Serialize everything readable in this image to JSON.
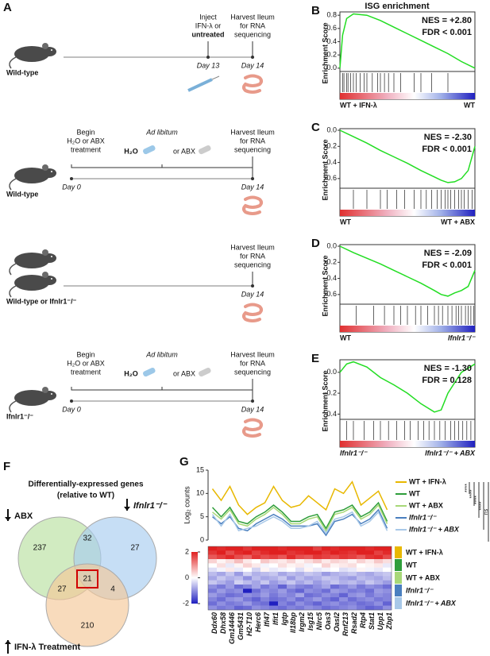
{
  "panel_a": {
    "label": "A",
    "rows": [
      {
        "mouse": "Wild-type",
        "events": [
          {
            "lines": [
              "Inject",
              "IFN-λ or",
              "untreated"
            ],
            "day": "Day 13"
          },
          {
            "lines": [
              "Harvest Ileum",
              "for RNA",
              "sequencing"
            ],
            "day": "Day 14"
          }
        ]
      },
      {
        "mouse": "Wild-type",
        "begin": {
          "lines": [
            "Begin",
            "H₂O or ABX",
            "treatment"
          ],
          "day": "Day 0"
        },
        "middle": {
          "title": "Ad libitum",
          "left": "H₂O",
          "right": "or ABX"
        },
        "events": [
          {
            "lines": [
              "Harvest Ileum",
              "for RNA",
              "sequencing"
            ],
            "day": "Day 14"
          }
        ]
      },
      {
        "mouse": "Wild-type or Ifnlr1⁻/⁻",
        "events": [
          {
            "lines": [
              "Harvest Ileum",
              "for RNA",
              "sequencing"
            ],
            "day": "Day 14"
          }
        ]
      },
      {
        "mouse": "Ifnlr1⁻/⁻",
        "begin": {
          "lines": [
            "Begin",
            "H₂O or ABX",
            "treatment"
          ],
          "day": "Day 0"
        },
        "middle": {
          "title": "Ad libitum",
          "left": "H₂O",
          "right": "or ABX"
        },
        "events": [
          {
            "lines": [
              "Harvest Ileum",
              "for RNA",
              "sequencing"
            ],
            "day": "Day 14"
          }
        ]
      }
    ]
  },
  "gsea": {
    "title": "ISG enrichment",
    "ylabel": "Enrichment Score",
    "panels": [
      {
        "label": "B",
        "nes": "NES = +2.80",
        "fdr": "FDR < 0.001",
        "fdr_color": "#d00000",
        "left": "WT + IFN-λ",
        "right": "WT",
        "ylim": [
          -0.05,
          0.85
        ],
        "yticks": [
          {
            "value": 0,
            "label": "0.0"
          },
          0.2,
          0.4,
          0.6,
          0.8
        ],
        "x": [
          0,
          0.02,
          0.05,
          0.1,
          0.2,
          0.3,
          0.4,
          0.5,
          0.6,
          0.7,
          0.8,
          0.9,
          1
        ],
        "values": [
          0,
          0.5,
          0.75,
          0.82,
          0.8,
          0.72,
          0.62,
          0.52,
          0.42,
          0.32,
          0.22,
          0.1,
          0
        ],
        "hits": [
          0.02,
          0.03,
          0.05,
          0.06,
          0.08,
          0.1,
          0.12,
          0.15,
          0.18,
          0.2,
          0.24,
          0.28,
          0.3,
          0.33,
          0.36,
          0.4,
          0.45,
          0.55,
          0.6,
          0.68,
          0.8
        ]
      },
      {
        "label": "C",
        "nes": "NES = -2.30",
        "fdr": "FDR < 0.001",
        "fdr_color": "#d00000",
        "left": "WT",
        "right": "WT + ABX",
        "ylim": [
          -0.72,
          0.02
        ],
        "yticks": [
          {
            "value": 0,
            "label": "0.0"
          },
          -0.2,
          -0.4,
          -0.6
        ],
        "x": [
          0,
          0.1,
          0.2,
          0.3,
          0.4,
          0.5,
          0.6,
          0.7,
          0.75,
          0.8,
          0.85,
          0.9,
          0.95,
          1
        ],
        "values": [
          0,
          -0.08,
          -0.16,
          -0.25,
          -0.33,
          -0.41,
          -0.5,
          -0.58,
          -0.62,
          -0.65,
          -0.64,
          -0.6,
          -0.5,
          -0.2
        ],
        "hits": [
          0.1,
          0.2,
          0.3,
          0.35,
          0.42,
          0.48,
          0.55,
          0.6,
          0.64,
          0.68,
          0.72,
          0.75,
          0.78,
          0.8,
          0.82,
          0.85,
          0.88,
          0.9,
          0.92,
          0.95,
          0.98
        ]
      },
      {
        "label": "D",
        "nes": "NES = -2.09",
        "fdr": "FDR < 0.001",
        "fdr_color": "#d00000",
        "left": "WT",
        "right": "Ifnlr1⁻/⁻",
        "ylim": [
          -0.72,
          0.02
        ],
        "yticks": [
          {
            "value": 0,
            "label": "0.0"
          },
          -0.2,
          -0.4,
          -0.6
        ],
        "x": [
          0,
          0.1,
          0.2,
          0.3,
          0.4,
          0.5,
          0.6,
          0.7,
          0.75,
          0.8,
          0.85,
          0.9,
          0.95,
          1
        ],
        "values": [
          0,
          -0.08,
          -0.15,
          -0.22,
          -0.3,
          -0.38,
          -0.46,
          -0.55,
          -0.6,
          -0.62,
          -0.58,
          -0.55,
          -0.5,
          -0.3
        ],
        "hits": [
          0.12,
          0.25,
          0.33,
          0.4,
          0.45,
          0.5,
          0.56,
          0.6,
          0.65,
          0.7,
          0.73,
          0.76,
          0.8,
          0.83,
          0.86,
          0.88,
          0.9,
          0.93,
          0.95,
          0.97,
          0.99
        ]
      },
      {
        "label": "E",
        "nes": "NES = -1.30",
        "fdr": "FDR = 0.128",
        "fdr_color": "#111111",
        "left": "Ifnlr1⁻/⁻",
        "right": "Ifnlr1⁻/⁻ + ABX",
        "ylim": [
          -0.45,
          0.12
        ],
        "yticks": [
          {
            "value": 0,
            "label": "0.0"
          },
          -0.2,
          -0.4
        ],
        "x": [
          0,
          0.05,
          0.1,
          0.2,
          0.3,
          0.4,
          0.5,
          0.6,
          0.7,
          0.75,
          0.8,
          0.85,
          0.9,
          1
        ],
        "values": [
          0,
          0.08,
          0.1,
          0.05,
          -0.05,
          -0.12,
          -0.2,
          -0.3,
          -0.38,
          -0.36,
          -0.2,
          -0.1,
          0,
          0.08
        ],
        "hits": [
          0.05,
          0.1,
          0.18,
          0.25,
          0.3,
          0.36,
          0.42,
          0.48,
          0.52,
          0.58,
          0.62,
          0.66,
          0.7,
          0.74,
          0.78,
          0.82,
          0.85,
          0.88,
          0.91,
          0.94,
          0.97
        ]
      }
    ]
  },
  "panel_f": {
    "label": "F",
    "title": [
      "Differentially-expressed genes",
      "(relative to WT)"
    ],
    "sets": [
      "ABX",
      "Ifnlr1⁻/⁻",
      "IFN-λ Treatment"
    ],
    "regions": {
      "abx": "237",
      "abx_ifnlr1": "32",
      "ifnlr1": "27",
      "abx_ifn": "27",
      "all": "21",
      "ifnlr1_ifn": "4",
      "ifn": "210"
    }
  },
  "panel_g": {
    "label": "G",
    "type": "line",
    "ylabel": "Log₂ counts",
    "ylim": [
      0,
      15
    ],
    "yticks": [
      0,
      5,
      10,
      15
    ],
    "categories": [
      "Ddx60",
      "Dhx58",
      "Gm14446",
      "Gm5431",
      "H2-T10",
      "Herc6",
      "Ifi47",
      "Ifit1",
      "Igtp",
      "Il18bp",
      "Irgm2",
      "Isg15",
      "Nlrc5",
      "Oas3",
      "Oasl2",
      "Rnf213",
      "Rsad2",
      "Rtp4",
      "Stat1",
      "Upp1",
      "Zbp1"
    ],
    "series": [
      {
        "name": "WT + IFN-λ",
        "color": "#e8b800",
        "values": [
          11,
          8.5,
          11.5,
          7.5,
          5.5,
          7,
          8,
          11.5,
          8.5,
          7,
          7.5,
          9.5,
          8,
          6.5,
          11,
          10,
          12.5,
          7.5,
          9,
          10.5,
          6.5
        ]
      },
      {
        "name": "WT",
        "color": "#2e9e3a",
        "values": [
          7,
          5,
          7,
          4,
          3.5,
          5,
          6,
          7.5,
          6,
          4,
          4,
          5,
          5.5,
          2.5,
          6,
          6.5,
          7.5,
          5,
          6,
          8,
          4
        ]
      },
      {
        "name": "WT + ABX",
        "color": "#a8d878",
        "values": [
          6,
          4.5,
          6.5,
          3.5,
          3,
          4.5,
          5.5,
          7,
          5.5,
          3.5,
          3.5,
          4.5,
          5,
          2,
          5.5,
          6,
          7,
          4.5,
          5.5,
          7.5,
          3.5
        ]
      },
      {
        "name": "Ifnlr1⁻/⁻",
        "color": "#4a7fbf",
        "values": [
          5,
          3.5,
          5,
          2.5,
          2,
          3.5,
          4.5,
          5.5,
          4.5,
          3,
          3,
          3,
          3.5,
          1,
          4,
          4.5,
          5.5,
          3.5,
          4.5,
          6.5,
          2.5
        ]
      },
      {
        "name": "Ifnlr1⁻/⁻ + ABX",
        "color": "#a8c8e8",
        "values": [
          5.5,
          3,
          5.5,
          2,
          2.5,
          3,
          4,
          5,
          4,
          2.5,
          2.5,
          3,
          4,
          1.5,
          4.5,
          5,
          6,
          3,
          4,
          6,
          2
        ]
      }
    ],
    "significance": [
      "****",
      "****",
      "****",
      "****",
      "ns"
    ],
    "heatmap": {
      "clim": [
        -2,
        2
      ],
      "cticks": [
        2,
        0,
        -2
      ],
      "groups": [
        {
          "name": "WT + IFN-λ",
          "color": "#e8b800",
          "rows": [
            [
              2.1,
              1.9,
              2.2,
              2.0,
              1.8,
              2.0,
              2.1,
              2.2,
              1.9,
              2.0,
              2.1,
              2.2,
              1.7,
              2.0,
              1.9,
              2.1,
              2.2,
              2.0,
              1.9,
              2.1,
              2.0
            ],
            [
              1.8,
              2.0,
              1.6,
              1.9,
              2.1,
              1.7,
              1.9,
              2.0,
              2.1,
              1.8,
              1.9,
              2.0,
              2.1,
              1.8,
              2.0,
              1.9,
              1.8,
              2.1,
              2.0,
              1.7,
              1.9
            ],
            [
              1.5,
              1.7,
              1.9,
              1.6,
              1.4,
              1.8,
              1.6,
              1.7,
              1.5,
              1.9,
              1.6,
              1.5,
              1.8,
              1.7,
              1.6,
              1.8,
              1.7,
              1.5,
              1.8,
              1.9,
              1.6
            ]
          ]
        },
        {
          "name": "WT",
          "color": "#2e9e3a",
          "rows": [
            [
              0.4,
              0.1,
              0.3,
              0.6,
              0.2,
              0.0,
              0.5,
              0.3,
              0.2,
              0.4,
              0.1,
              0.3,
              0.5,
              0.2,
              0.4,
              0.3,
              0.1,
              0.4,
              0.2,
              0.5,
              0.3
            ],
            [
              0.0,
              0.3,
              -0.2,
              0.1,
              0.4,
              0.2,
              -0.1,
              0.0,
              0.3,
              0.1,
              0.2,
              -0.1,
              0.0,
              0.4,
              0.1,
              0.2,
              0.3,
              0.0,
              0.1,
              0.2,
              -0.2
            ],
            [
              -0.3,
              -0.1,
              0.2,
              -0.2,
              0.0,
              -0.4,
              0.1,
              -0.2,
              -0.1,
              0.0,
              -0.3,
              0.1,
              -0.2,
              -0.1,
              0.0,
              -0.3,
              -0.2,
              0.1,
              -0.1,
              -0.2,
              0.0
            ]
          ]
        },
        {
          "name": "WT + ABX",
          "color": "#a8d878",
          "rows": [
            [
              -0.6,
              -0.8,
              -0.5,
              -0.9,
              -0.4,
              -0.7,
              -0.6,
              -0.5,
              -0.8,
              -0.6,
              -0.7,
              -0.5,
              -0.6,
              -0.9,
              -0.7,
              -0.6,
              -0.5,
              -0.7,
              -0.8,
              -0.6,
              -0.5
            ],
            [
              -0.8,
              -0.5,
              -0.7,
              -0.6,
              -1.0,
              -0.6,
              -0.8,
              -0.7,
              -0.5,
              -0.9,
              -0.6,
              -0.8,
              -0.7,
              -0.5,
              -0.6,
              -0.8,
              -0.9,
              -0.6,
              -0.7,
              -0.8,
              -0.6
            ],
            [
              -0.5,
              -0.7,
              -0.9,
              -0.4,
              -0.6,
              -0.8,
              -0.5,
              -0.9,
              -0.7,
              -0.5,
              -0.8,
              -0.6,
              -0.9,
              -0.7,
              -0.5,
              -0.7,
              -0.6,
              -0.8,
              -0.5,
              -0.7,
              -0.9
            ]
          ]
        },
        {
          "name": "Ifnlr1⁻/⁻",
          "color": "#4a7fbf",
          "rows": [
            [
              -1.0,
              -1.2,
              -0.9,
              -1.3,
              -1.1,
              -0.8,
              -1.2,
              -1.0,
              -1.4,
              -0.9,
              -1.1,
              -1.2,
              -1.0,
              -0.8,
              -1.3,
              -1.1,
              -0.9,
              -1.2,
              -1.0,
              -1.1,
              -1.3
            ],
            [
              -1.2,
              -0.9,
              -1.1,
              -1.0,
              -2.0,
              -1.3,
              -1.0,
              -1.1,
              -0.9,
              -1.2,
              -1.4,
              -1.0,
              -1.1,
              -1.3,
              -0.9,
              -1.0,
              -1.2,
              -1.1,
              -1.3,
              -0.9,
              -1.0
            ],
            [
              -0.9,
              -1.1,
              -1.3,
              -1.2,
              -1.0,
              -1.1,
              -0.9,
              -1.2,
              -1.0,
              -1.1,
              -0.8,
              -1.3,
              -1.2,
              -1.0,
              -1.1,
              -1.4,
              -1.0,
              -0.9,
              -1.2,
              -1.0,
              -1.1
            ]
          ]
        },
        {
          "name": "Ifnlr1⁻/⁻ + ABX",
          "color": "#a8c8e8",
          "rows": [
            [
              -1.1,
              -1.3,
              -1.0,
              -0.9,
              -1.2,
              -1.4,
              -1.1,
              -1.3,
              -1.2,
              -1.0,
              -1.3,
              -1.1,
              -0.9,
              -1.2,
              -1.4,
              -1.0,
              -1.3,
              -1.1,
              -1.0,
              -1.2,
              -1.1
            ],
            [
              -1.3,
              -1.0,
              -1.2,
              -1.1,
              -0.9,
              -1.2,
              -1.3,
              -2.1,
              -1.1,
              -1.3,
              -1.0,
              -1.2,
              -1.4,
              -1.1,
              -1.0,
              -1.2,
              -1.1,
              -1.3,
              -1.2,
              -1.0,
              -1.4
            ],
            [
              -1.0,
              -1.2,
              -1.1,
              -1.4,
              -1.3,
              -1.0,
              -1.1,
              -1.2,
              -1.3,
              -1.1,
              -1.2,
              -1.0,
              -1.1,
              -1.3,
              -1.2,
              -1.1,
              -1.0,
              -1.2,
              -1.4,
              -1.3,
              -1.0
            ]
          ]
        }
      ]
    }
  }
}
